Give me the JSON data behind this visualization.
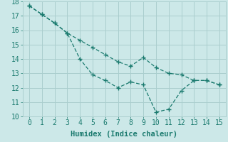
{
  "line1_x": [
    0,
    1,
    2,
    3,
    4,
    5,
    6,
    7,
    8,
    9,
    10,
    11,
    12,
    13,
    14,
    15
  ],
  "line1_y": [
    17.7,
    17.1,
    16.5,
    15.8,
    15.3,
    14.8,
    14.3,
    13.8,
    13.5,
    14.1,
    13.4,
    13.0,
    12.9,
    12.5,
    12.5,
    12.2
  ],
  "line2_x": [
    0,
    1,
    2,
    3,
    4,
    5,
    6,
    7,
    8,
    9,
    10,
    11,
    12,
    13,
    14,
    15
  ],
  "line2_y": [
    17.7,
    17.1,
    16.5,
    15.8,
    14.0,
    12.9,
    12.5,
    12.0,
    12.4,
    12.2,
    10.3,
    10.5,
    11.8,
    12.5,
    12.5,
    12.2
  ],
  "line_color": "#1a7a6e",
  "bg_color": "#cce8e8",
  "grid_color": "#aacece",
  "xlabel": "Humidex (Indice chaleur)",
  "xlim": [
    -0.5,
    15.5
  ],
  "ylim": [
    10,
    18
  ],
  "yticks": [
    10,
    11,
    12,
    13,
    14,
    15,
    16,
    17,
    18
  ],
  "xticks": [
    0,
    1,
    2,
    3,
    4,
    5,
    6,
    7,
    8,
    9,
    10,
    11,
    12,
    13,
    14,
    15
  ],
  "xlabel_fontsize": 7.5,
  "tick_fontsize": 7
}
